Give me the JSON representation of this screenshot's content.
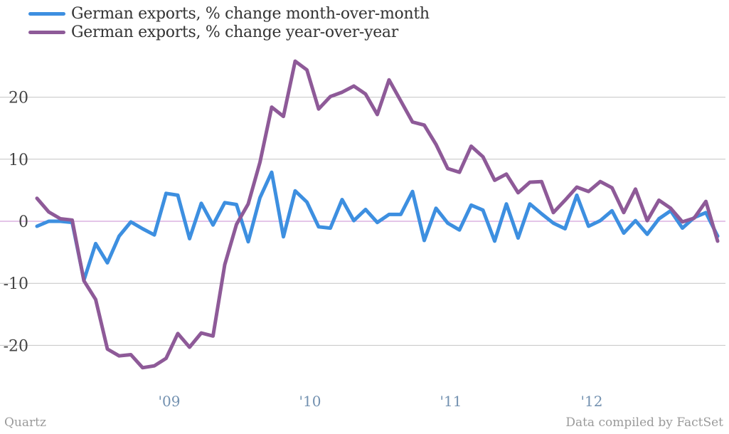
{
  "legend": {
    "items": [
      {
        "label": "German exports, % change month-over-month",
        "color": "#3d8fe0"
      },
      {
        "label": "German exports, % change year-over-year",
        "color": "#8e5a98"
      }
    ]
  },
  "footer": {
    "source_left": "Quartz",
    "source_right": "Data compiled by FactSet"
  },
  "chart_data": {
    "type": "line",
    "title": "",
    "xlabel": "",
    "ylabel": "",
    "ylim": [
      -27,
      28
    ],
    "yticks": [
      20,
      10,
      0,
      -10,
      -20
    ],
    "xticks": [
      {
        "label": "'09",
        "x": 12
      },
      {
        "label": "'10",
        "x": 24
      },
      {
        "label": "'11",
        "x": 36
      },
      {
        "label": "'12",
        "x": 48
      }
    ],
    "x_index_start": 0,
    "grid": true,
    "zero_line_color": "#c98bd2",
    "legend_position": "top-left",
    "series": [
      {
        "name": "German exports, % change month-over-month",
        "color": "#3d8fe0",
        "values": [
          -0.8,
          0,
          0,
          -0.2,
          -9.5,
          -3.6,
          -6.7,
          -2.4,
          -0.1,
          -1.2,
          -2.2,
          4.5,
          4.2,
          -2.8,
          2.9,
          -0.6,
          3.0,
          2.7,
          -3.3,
          3.8,
          7.9,
          -2.5,
          4.9,
          3.1,
          -0.9,
          -1.1,
          3.5,
          0.1,
          1.9,
          -0.2,
          1.1,
          1.1,
          4.8,
          -3.1,
          2.1,
          -0.3,
          -1.4,
          2.6,
          1.8,
          -3.2,
          2.8,
          -2.7,
          2.8,
          1.2,
          -0.3,
          -1.2,
          4.2,
          -0.8,
          0.1,
          1.7,
          -1.9,
          0.1,
          -2.1,
          0.4,
          1.7,
          -1.1,
          0.6,
          1.4,
          -2.4
        ]
      },
      {
        "name": "German exports, % change year-over-year",
        "color": "#8e5a98",
        "values": [
          3.7,
          1.5,
          0.4,
          0.2,
          -9.6,
          -12.6,
          -20.6,
          -21.7,
          -21.5,
          -23.6,
          -23.3,
          -22.1,
          -18.1,
          -20.3,
          -18.0,
          -18.5,
          -7.0,
          -0.5,
          2.8,
          9.5,
          18.4,
          16.9,
          25.8,
          24.4,
          18.1,
          20.1,
          20.8,
          21.8,
          20.5,
          17.2,
          22.8,
          19.4,
          16.0,
          15.5,
          12.4,
          8.5,
          7.9,
          12.1,
          10.4,
          6.6,
          7.6,
          4.6,
          6.3,
          6.4,
          1.4,
          3.4,
          5.5,
          4.8,
          6.4,
          5.4,
          1.4,
          5.2,
          0.1,
          3.4,
          2.1,
          -0.1,
          0.5,
          3.2,
          -3.2
        ]
      }
    ]
  }
}
